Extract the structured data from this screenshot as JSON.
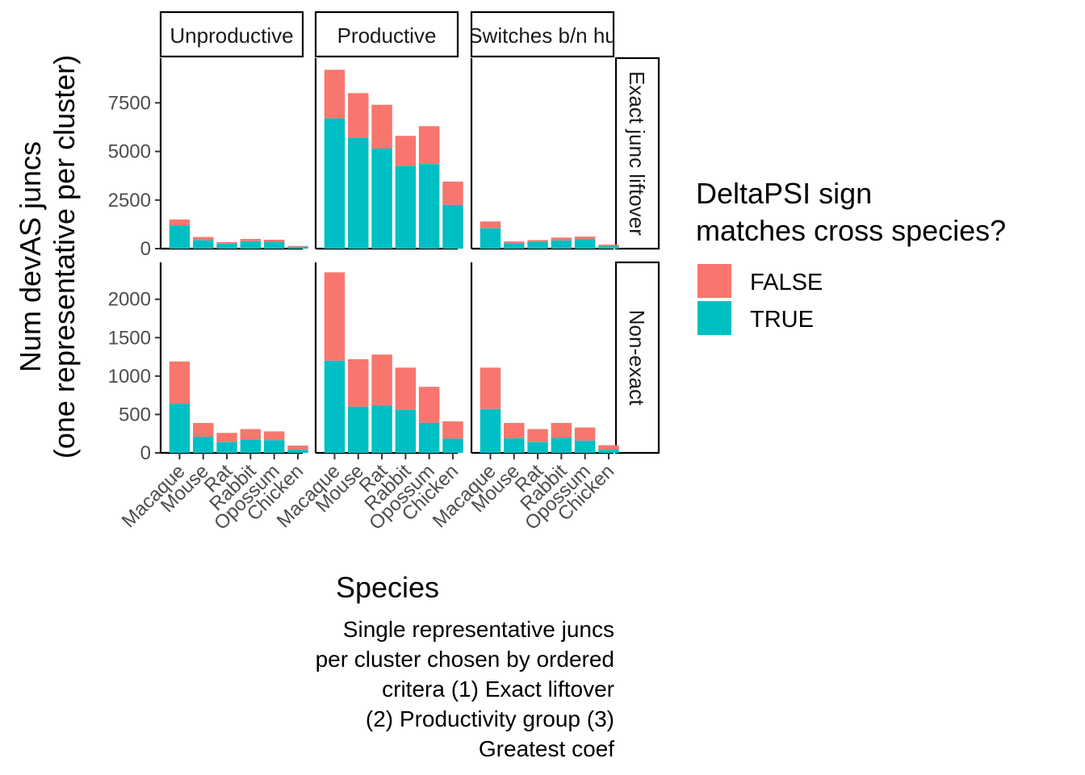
{
  "chart_data": {
    "type": "bar",
    "stacked": true,
    "ylabel": [
      "Num devAS juncs",
      "(one representative per cluster)"
    ],
    "xlabel": "Species",
    "caption": [
      "Single representative juncs",
      "per cluster chosen by ordered",
      "critera (1) Exact liftover",
      "(2) Productivity group (3)",
      "Greatest coef"
    ],
    "categories": [
      "Macaque",
      "Mouse",
      "Rat",
      "Rabbit",
      "Opossum",
      "Chicken"
    ],
    "column_facets": [
      "Unproductive",
      "Productive",
      "Switches b/n hu"
    ],
    "row_facets": [
      "Exact junc liftover",
      "Non-exact"
    ],
    "legend": {
      "title": [
        "DeltaPSI sign",
        "matches cross species?"
      ],
      "placement": "right",
      "entries": [
        {
          "label": "FALSE",
          "color": "#F8766D"
        },
        {
          "label": "TRUE",
          "color": "#00BFC4"
        }
      ]
    },
    "panels_rows": [
      {
        "ylim": [
          0,
          9800
        ],
        "yticks": [
          0,
          2500,
          5000,
          7500
        ],
        "yticklabels": [
          "0",
          "2500",
          "5000",
          "7500"
        ],
        "columns": [
          {
            "true": [
              1200,
              430,
              260,
              380,
              350,
              90
            ],
            "total": [
              1500,
              600,
              340,
              500,
              460,
              140
            ]
          },
          {
            "true": [
              6700,
              5700,
              5150,
              4250,
              4350,
              2250
            ],
            "total": [
              9200,
              8000,
              7400,
              5800,
              6300,
              3450
            ]
          },
          {
            "true": [
              1050,
              280,
              350,
              420,
              480,
              130
            ],
            "total": [
              1400,
              370,
              440,
              570,
              620,
              210
            ]
          }
        ]
      },
      {
        "ylim": [
          0,
          2480
        ],
        "yticks": [
          0,
          500,
          1000,
          1500,
          2000
        ],
        "yticklabels": [
          "0",
          "500",
          "1000",
          "1500",
          "2000"
        ],
        "columns": [
          {
            "true": [
              640,
              210,
              140,
              175,
              165,
              40
            ],
            "total": [
              1190,
              390,
              260,
              310,
              280,
              95
            ]
          },
          {
            "true": [
              1200,
              600,
              615,
              560,
              390,
              185
            ],
            "total": [
              2350,
              1220,
              1280,
              1110,
              860,
              410
            ]
          },
          {
            "true": [
              570,
              190,
              140,
              195,
              160,
              40
            ],
            "total": [
              1110,
              390,
              310,
              390,
              330,
              100
            ]
          }
        ]
      }
    ]
  }
}
